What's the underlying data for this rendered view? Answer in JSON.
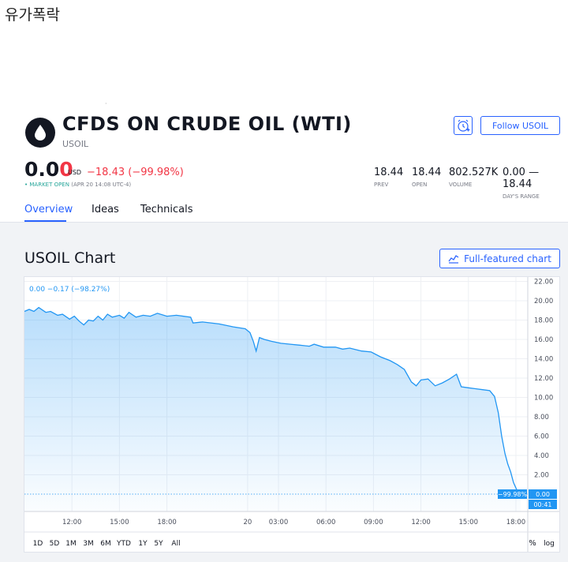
{
  "caption": "유가폭락",
  "stray_mark": "·",
  "header": {
    "title": "CFDS ON CRUDE OIL (WTI)",
    "ticker": "USOIL",
    "follow_label": "Follow USOIL"
  },
  "quote": {
    "price_main": "0.0",
    "price_last": "0",
    "currency": "USD",
    "change": "−18.43 (−99.98%)",
    "market_dot": "•",
    "market_status": "MARKET OPEN",
    "market_time": "(APR 20 14:08 UTC-4)"
  },
  "stats": [
    {
      "value": "18.44",
      "label": "PREV"
    },
    {
      "value": "18.44",
      "label": "OPEN"
    },
    {
      "value": "802.527K",
      "label": "VOLUME"
    },
    {
      "value": "0.00 — 18.44",
      "label": "DAY'S RANGE"
    }
  ],
  "tabs": [
    {
      "label": "Overview",
      "active": true
    },
    {
      "label": "Ideas",
      "active": false
    },
    {
      "label": "Technicals",
      "active": false
    }
  ],
  "chart_section": {
    "title": "USOIL Chart",
    "full_chart_label": "Full-featured chart"
  },
  "colors": {
    "accent": "#2962ff",
    "down": "#f23645",
    "line": "#2196f3",
    "market_open": "#26a69a"
  },
  "chart_data": {
    "type": "area",
    "legend_text": "0.00  −0.17 (−98.27%)",
    "y_ticks": [
      "22.00",
      "20.00",
      "18.00",
      "16.00",
      "14.00",
      "12.00",
      "10.00",
      "8.00",
      "6.00",
      "4.00",
      "2.00"
    ],
    "ylim": [
      0,
      22.4
    ],
    "x_ticks": [
      {
        "t": 1.0,
        "label": "12:00"
      },
      {
        "t": 2.0,
        "label": "15:00"
      },
      {
        "t": 3.0,
        "label": "18:00"
      },
      {
        "t": 4.7,
        "label": "20"
      },
      {
        "t": 5.35,
        "label": "03:00"
      },
      {
        "t": 6.35,
        "label": "06:00"
      },
      {
        "t": 7.35,
        "label": "09:00"
      },
      {
        "t": 8.35,
        "label": "12:00"
      },
      {
        "t": 9.35,
        "label": "15:00"
      },
      {
        "t": 10.35,
        "label": "18:00"
      }
    ],
    "xlim": [
      0,
      10.6
    ],
    "last_change_label": "−99.98%",
    "last_value_label": "0.00",
    "countdown_label": "00:41",
    "last_value": 0.0,
    "series": [
      {
        "values": [
          [
            0.0,
            18.9
          ],
          [
            0.1,
            19.1
          ],
          [
            0.2,
            18.9
          ],
          [
            0.3,
            19.3
          ],
          [
            0.45,
            18.8
          ],
          [
            0.55,
            18.9
          ],
          [
            0.7,
            18.5
          ],
          [
            0.8,
            18.6
          ],
          [
            0.95,
            18.1
          ],
          [
            1.05,
            18.4
          ],
          [
            1.15,
            17.9
          ],
          [
            1.25,
            17.5
          ],
          [
            1.35,
            18.0
          ],
          [
            1.45,
            17.9
          ],
          [
            1.55,
            18.4
          ],
          [
            1.65,
            18.0
          ],
          [
            1.75,
            18.6
          ],
          [
            1.85,
            18.3
          ],
          [
            2.0,
            18.5
          ],
          [
            2.1,
            18.2
          ],
          [
            2.2,
            18.8
          ],
          [
            2.35,
            18.3
          ],
          [
            2.5,
            18.5
          ],
          [
            2.65,
            18.4
          ],
          [
            2.8,
            18.7
          ],
          [
            3.0,
            18.4
          ],
          [
            3.2,
            18.5
          ],
          [
            3.5,
            18.3
          ],
          [
            3.55,
            17.7
          ],
          [
            3.75,
            17.8
          ],
          [
            4.1,
            17.6
          ],
          [
            4.4,
            17.3
          ],
          [
            4.65,
            17.1
          ],
          [
            4.75,
            16.7
          ],
          [
            4.82,
            15.8
          ],
          [
            4.88,
            14.8
          ],
          [
            4.95,
            16.2
          ],
          [
            5.05,
            16.0
          ],
          [
            5.2,
            15.8
          ],
          [
            5.4,
            15.6
          ],
          [
            5.6,
            15.5
          ],
          [
            5.8,
            15.4
          ],
          [
            6.0,
            15.3
          ],
          [
            6.1,
            15.5
          ],
          [
            6.3,
            15.2
          ],
          [
            6.55,
            15.2
          ],
          [
            6.7,
            15.0
          ],
          [
            6.85,
            15.1
          ],
          [
            7.1,
            14.8
          ],
          [
            7.3,
            14.7
          ],
          [
            7.5,
            14.2
          ],
          [
            7.7,
            13.8
          ],
          [
            7.85,
            13.4
          ],
          [
            8.0,
            12.9
          ],
          [
            8.15,
            11.6
          ],
          [
            8.25,
            11.2
          ],
          [
            8.35,
            11.8
          ],
          [
            8.5,
            11.9
          ],
          [
            8.65,
            11.2
          ],
          [
            8.8,
            11.5
          ],
          [
            8.95,
            11.9
          ],
          [
            9.1,
            12.4
          ],
          [
            9.2,
            11.1
          ],
          [
            9.35,
            11.0
          ],
          [
            9.5,
            10.9
          ],
          [
            9.65,
            10.8
          ],
          [
            9.8,
            10.7
          ],
          [
            9.9,
            10.1
          ],
          [
            9.98,
            8.4
          ],
          [
            10.05,
            6.0
          ],
          [
            10.12,
            4.2
          ],
          [
            10.18,
            3.1
          ],
          [
            10.24,
            2.3
          ],
          [
            10.3,
            1.2
          ],
          [
            10.38,
            0.3
          ],
          [
            10.45,
            0.0
          ]
        ]
      }
    ]
  }
}
